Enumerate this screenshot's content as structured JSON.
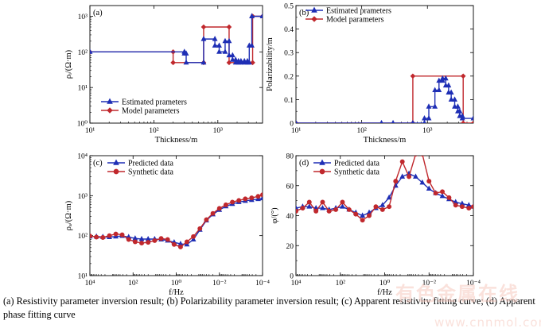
{
  "caption": "(a) Resistivity parameter inversion result; (b) Polarizability parameter inversion result; (c) Apparent resistivity fitting curve; (d) Apparent phase fitting curve",
  "watermark": {
    "text_cn": "有色金属在线",
    "text_url": "www.cnnmol.com"
  },
  "colors": {
    "blue": "#1f2fb5",
    "red": "#c0282d",
    "axis": "#000000"
  },
  "chart_data": [
    {
      "id": "a",
      "panel_label": "(a)",
      "type": "line",
      "xscale": "log",
      "yscale": "log",
      "xlim": [
        10,
        5000
      ],
      "ylim": [
        1,
        2000
      ],
      "xticks": [
        10,
        100,
        1000
      ],
      "xtick_labels": [
        "10¹",
        "10²",
        "10³"
      ],
      "yticks": [
        1,
        10,
        100,
        1000
      ],
      "ytick_labels": [
        "10⁰",
        "10¹",
        "10²",
        "10³"
      ],
      "xlabel": "Thickness/m",
      "ylabel": "ρᵢ/(Ω·m)",
      "legend": [
        "Estimated prameters",
        "Model parameters"
      ],
      "series": [
        {
          "name": "Estimated prameters",
          "color": "#1f2fb5",
          "marker": "triangle",
          "x": [
            10,
            300,
            300,
            320,
            320,
            600,
            600,
            900,
            900,
            1050,
            1050,
            1300,
            1300,
            1500,
            1500,
            1700,
            1700,
            1900,
            1900,
            2100,
            2100,
            2300,
            2300,
            2600,
            2600,
            2900,
            2900,
            3100,
            3100,
            3400,
            3400,
            5000
          ],
          "y": [
            100,
            100,
            90,
            90,
            50,
            50,
            230,
            230,
            150,
            150,
            100,
            100,
            200,
            200,
            80,
            80,
            60,
            60,
            50,
            50,
            55,
            55,
            50,
            50,
            55,
            55,
            50,
            50,
            150,
            150,
            1000,
            1000
          ]
        },
        {
          "name": "Model parameters",
          "color": "#c0282d",
          "marker": "diamond",
          "x": [
            10,
            200,
            200,
            600,
            600,
            1500,
            1500,
            3500,
            3500,
            5000
          ],
          "y": [
            100,
            100,
            50,
            50,
            500,
            500,
            50,
            50,
            1000,
            1000
          ]
        }
      ]
    },
    {
      "id": "b",
      "panel_label": "(b)",
      "type": "line",
      "xscale": "log",
      "yscale": "linear",
      "xlim": [
        10,
        5000
      ],
      "ylim": [
        0,
        0.5
      ],
      "xticks": [
        10,
        100,
        1000
      ],
      "xtick_labels": [
        "10¹",
        "10²",
        "10³"
      ],
      "yticks": [
        0,
        0.1,
        0.2,
        0.3,
        0.4,
        0.5
      ],
      "ytick_labels": [
        "0",
        "0.1",
        "0.2",
        "0.3",
        "0.4",
        "0.5"
      ],
      "xlabel": "Thickness/m",
      "ylabel": "Polarizability/m",
      "legend": [
        "Estimated prameters",
        "Model parameters"
      ],
      "series": [
        {
          "name": "Estimated prameters",
          "color": "#1f2fb5",
          "marker": "triangle",
          "x": [
            10,
            200,
            300,
            600,
            900,
            900,
            1050,
            1050,
            1300,
            1300,
            1500,
            1500,
            1700,
            1700,
            1900,
            1900,
            2100,
            2100,
            2300,
            2300,
            2600,
            2600,
            2900,
            2900,
            3100,
            3100,
            3400,
            3400,
            5000
          ],
          "y": [
            0,
            0,
            0,
            0,
            0,
            0.02,
            0.02,
            0.07,
            0.07,
            0.14,
            0.14,
            0.18,
            0.18,
            0.19,
            0.19,
            0.16,
            0.16,
            0.13,
            0.13,
            0.1,
            0.1,
            0.07,
            0.07,
            0.05,
            0.05,
            0.03,
            0.03,
            0.02,
            0.02
          ]
        },
        {
          "name": "Model parameters",
          "color": "#c0282d",
          "marker": "diamond",
          "x": [
            10,
            600,
            600,
            3500,
            3500,
            5000
          ],
          "y": [
            0,
            0,
            0.2,
            0.2,
            0,
            0
          ]
        }
      ]
    },
    {
      "id": "c",
      "panel_label": "(c)",
      "type": "line",
      "xscale": "log",
      "yscale": "log",
      "x_reversed": true,
      "xlim": [
        10000,
        0.0001
      ],
      "ylim": [
        10,
        10000
      ],
      "xticks": [
        10000,
        100,
        1,
        0.01,
        0.0001
      ],
      "xtick_labels": [
        "10⁴",
        "10²",
        "10⁰",
        "10⁻²",
        "10⁻⁴"
      ],
      "yticks": [
        10,
        100,
        1000,
        10000
      ],
      "ytick_labels": [
        "10¹",
        "10²",
        "10³",
        "10⁴"
      ],
      "xlabel": "f/Hz",
      "ylabel": "ρₐ/(Ω·m)",
      "legend": [
        "Predicted data",
        "Synthetic data"
      ],
      "series": [
        {
          "name": "Predicted data",
          "color": "#1f2fb5",
          "marker": "triangle",
          "x": [
            10000,
            5000,
            2500,
            1250,
            630,
            320,
            160,
            80,
            40,
            20,
            10,
            5,
            2.5,
            1.25,
            0.63,
            0.32,
            0.16,
            0.08,
            0.04,
            0.02,
            0.01,
            0.005,
            0.0025,
            0.00125,
            0.00063,
            0.00032,
            0.00016,
            0.0001
          ],
          "y": [
            95,
            95,
            93,
            92,
            95,
            98,
            92,
            85,
            82,
            82,
            82,
            80,
            75,
            68,
            62,
            60,
            80,
            140,
            240,
            340,
            440,
            540,
            620,
            690,
            740,
            780,
            820,
            860
          ]
        },
        {
          "name": "Synthetic data",
          "color": "#c0282d",
          "marker": "circle",
          "x": [
            10000,
            5000,
            2500,
            1250,
            630,
            320,
            160,
            80,
            40,
            20,
            10,
            5,
            2.5,
            1.25,
            0.63,
            0.32,
            0.16,
            0.08,
            0.04,
            0.02,
            0.01,
            0.005,
            0.0025,
            0.00125,
            0.00063,
            0.00032,
            0.00016,
            0.0001
          ],
          "y": [
            98,
            92,
            90,
            100,
            110,
            105,
            80,
            70,
            65,
            68,
            75,
            85,
            80,
            60,
            52,
            70,
            95,
            150,
            250,
            360,
            480,
            590,
            690,
            760,
            830,
            880,
            960,
            1050
          ]
        }
      ]
    },
    {
      "id": "d",
      "panel_label": "(d)",
      "type": "line",
      "xscale": "log",
      "yscale": "linear",
      "x_reversed": true,
      "xlim": [
        10000,
        0.0001
      ],
      "ylim": [
        0,
        80
      ],
      "xticks": [
        10000,
        100,
        1,
        0.01,
        0.0001
      ],
      "xtick_labels": [
        "10⁴",
        "10²",
        "10⁰",
        "10⁻²",
        "10⁻⁴"
      ],
      "yticks": [
        0,
        20,
        40,
        60,
        80
      ],
      "ytick_labels": [
        "0",
        "20",
        "40",
        "60",
        "80"
      ],
      "xlabel": "f/Hz",
      "ylabel": "φ/(°)",
      "legend": [
        "Predicted data",
        "Synthetic data"
      ],
      "series": [
        {
          "name": "Predicted data",
          "color": "#1f2fb5",
          "marker": "triangle",
          "x": [
            10000,
            5000,
            2500,
            1250,
            630,
            320,
            160,
            80,
            40,
            20,
            10,
            5,
            2.5,
            1.25,
            0.63,
            0.32,
            0.16,
            0.08,
            0.04,
            0.02,
            0.01,
            0.005,
            0.0025,
            0.00125,
            0.00063,
            0.00032,
            0.00016,
            0.0001
          ],
          "y": [
            45,
            46,
            46,
            45,
            45,
            44,
            45,
            46,
            44,
            42,
            40,
            42,
            45,
            47,
            52,
            60,
            66,
            68,
            66,
            62,
            58,
            55,
            53,
            51,
            49,
            48,
            47,
            46
          ]
        },
        {
          "name": "Synthetic data",
          "color": "#c0282d",
          "marker": "circle",
          "x": [
            10000,
            5000,
            2500,
            1250,
            630,
            320,
            160,
            80,
            40,
            20,
            10,
            5,
            2.5,
            1.25,
            0.63,
            0.32,
            0.16,
            0.08,
            0.04,
            0.02,
            0.01,
            0.005,
            0.0025,
            0.00125,
            0.00063,
            0.00032,
            0.00016,
            0.0001
          ],
          "y": [
            43,
            45,
            49,
            43,
            49,
            43,
            44,
            49,
            44,
            41,
            37,
            40,
            46,
            44,
            46,
            63,
            76,
            66,
            81,
            81,
            63,
            55,
            56,
            52,
            47,
            46,
            45,
            46
          ]
        }
      ]
    }
  ]
}
